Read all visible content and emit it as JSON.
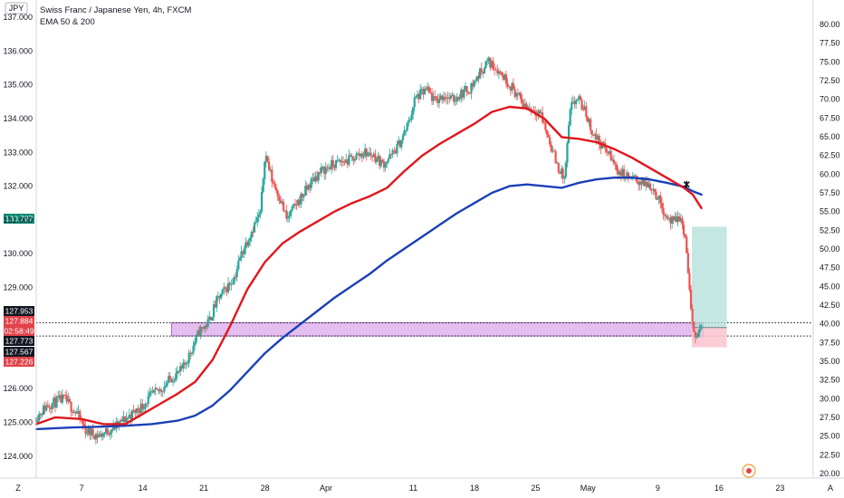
{
  "header": {
    "symbol_badge": "JPY",
    "title": "Swiss Franc / Japanese Yen, 4h, FXCM",
    "indicator": "EMA 50 & 200"
  },
  "colors": {
    "up": "#26a69a",
    "down": "#ef5350",
    "ema50": "#e0161b",
    "ema200": "#1b40b7",
    "zone_fill": "#d9a8e8",
    "target_fill": "#b2dfdb",
    "stop_fill": "#f8c3cf",
    "price_badge_green": "#0b8a72",
    "price_badge_red": "#e2434a",
    "price_badge_dark": "#131722"
  },
  "axis": {
    "corner_left": "Z",
    "corner_right": "A"
  },
  "price_badges": [
    {
      "label": "130.797",
      "style": "green"
    },
    {
      "label": "127.953",
      "style": "dark"
    },
    {
      "label": "127.884",
      "style": "red"
    },
    {
      "label": "02:58:49",
      "style": "red"
    },
    {
      "label": "127.773",
      "style": "dark"
    },
    {
      "label": "127.567",
      "style": "dark"
    },
    {
      "label": "127.226",
      "style": "red"
    }
  ],
  "chart_data": {
    "type": "candlestick",
    "title": "Swiss Franc / Japanese Yen, 4h, FXCM",
    "left_axis": {
      "ylim": [
        123.35,
        137.3
      ],
      "ticks": [
        "124.000",
        "125.000",
        "126.000",
        "129.000",
        "130.000",
        "131.000",
        "132.000",
        "133.000",
        "134.000",
        "135.000",
        "136.000",
        "137.000"
      ]
    },
    "right_axis": {
      "ylim": [
        19.4,
        82.3
      ],
      "ticks": [
        "20.00",
        "22.50",
        "25.00",
        "27.50",
        "30.00",
        "32.50",
        "35.00",
        "37.50",
        "40.00",
        "42.50",
        "45.00",
        "47.50",
        "50.00",
        "52.50",
        "55.00",
        "57.50",
        "60.00",
        "62.50",
        "65.00",
        "67.50",
        "70.00",
        "72.50",
        "75.00",
        "77.50",
        "80.00"
      ]
    },
    "x_ticks": [
      {
        "label": "7",
        "day": 7
      },
      {
        "label": "14",
        "day": 14
      },
      {
        "label": "21",
        "day": 21
      },
      {
        "label": "28",
        "day": 28
      },
      {
        "label": "Apr",
        "day": 35
      },
      {
        "label": "11",
        "day": 45
      },
      {
        "label": "18",
        "day": 52
      },
      {
        "label": "25",
        "day": 59
      },
      {
        "label": "May",
        "day": 65
      },
      {
        "label": "9",
        "day": 73
      },
      {
        "label": "16",
        "day": 80
      },
      {
        "label": "23",
        "day": 87
      }
    ],
    "x_range_days": [
      1.8,
      90.8
    ],
    "close_path": [
      [
        1.8,
        125.15
      ],
      [
        3,
        125.5
      ],
      [
        5,
        125.7
      ],
      [
        6.5,
        125.25
      ],
      [
        7.5,
        124.75
      ],
      [
        9,
        124.6
      ],
      [
        11,
        124.9
      ],
      [
        12.5,
        125.2
      ],
      [
        14,
        125.5
      ],
      [
        15,
        125.8
      ],
      [
        16,
        125.95
      ],
      [
        17.2,
        126.3
      ],
      [
        18.5,
        126.55
      ],
      [
        19.5,
        127.1
      ],
      [
        20.5,
        127.7
      ],
      [
        21.5,
        127.95
      ],
      [
        22.5,
        128.6
      ],
      [
        23.5,
        128.95
      ],
      [
        24.5,
        129.3
      ],
      [
        25.3,
        130.0
      ],
      [
        26.5,
        130.7
      ],
      [
        27.5,
        131.2
      ],
      [
        28,
        133.0
      ],
      [
        28.8,
        132.2
      ],
      [
        29.8,
        131.6
      ],
      [
        30.5,
        131.0
      ],
      [
        31.3,
        131.35
      ],
      [
        32.5,
        131.8
      ],
      [
        33.5,
        132.2
      ],
      [
        34.5,
        132.45
      ],
      [
        35.5,
        132.6
      ],
      [
        36.5,
        132.7
      ],
      [
        37.5,
        132.75
      ],
      [
        38.5,
        132.9
      ],
      [
        39.5,
        133.0
      ],
      [
        40.5,
        132.9
      ],
      [
        41.5,
        132.65
      ],
      [
        42.5,
        132.9
      ],
      [
        43.5,
        133.3
      ],
      [
        44.5,
        133.9
      ],
      [
        45.2,
        134.6
      ],
      [
        46.5,
        134.85
      ],
      [
        47.5,
        134.5
      ],
      [
        48.5,
        134.7
      ],
      [
        49.5,
        134.55
      ],
      [
        50.5,
        134.75
      ],
      [
        51.5,
        134.9
      ],
      [
        52.5,
        135.3
      ],
      [
        53.5,
        135.7
      ],
      [
        54.5,
        135.5
      ],
      [
        55.5,
        135.2
      ],
      [
        56.5,
        134.85
      ],
      [
        57.5,
        134.45
      ],
      [
        58.5,
        134.3
      ],
      [
        59.5,
        134.2
      ],
      [
        60.5,
        133.4
      ],
      [
        61.5,
        132.6
      ],
      [
        62.3,
        132.2
      ],
      [
        63,
        134.3
      ],
      [
        63.8,
        134.6
      ],
      [
        64.7,
        134.2
      ],
      [
        65.5,
        133.6
      ],
      [
        66.3,
        133.3
      ],
      [
        67.3,
        133.0
      ],
      [
        68.3,
        132.5
      ],
      [
        69.3,
        132.3
      ],
      [
        70.3,
        132.2
      ],
      [
        71.3,
        132.1
      ],
      [
        72.3,
        132.0
      ],
      [
        73.3,
        131.5
      ],
      [
        74,
        131.1
      ],
      [
        74.8,
        130.9
      ],
      [
        75.5,
        131.1
      ],
      [
        76.2,
        130.4
      ],
      [
        76.9,
        127.9
      ],
      [
        77.5,
        127.55
      ],
      [
        78,
        127.85
      ]
    ],
    "ema50": [
      [
        1.8,
        124.95
      ],
      [
        4,
        125.15
      ],
      [
        7,
        125.1
      ],
      [
        9.5,
        124.95
      ],
      [
        12,
        124.95
      ],
      [
        14,
        125.25
      ],
      [
        16,
        125.55
      ],
      [
        18,
        125.85
      ],
      [
        20,
        126.2
      ],
      [
        22,
        126.85
      ],
      [
        24,
        127.85
      ],
      [
        26,
        128.95
      ],
      [
        28,
        129.75
      ],
      [
        30,
        130.3
      ],
      [
        32,
        130.65
      ],
      [
        34,
        130.95
      ],
      [
        36,
        131.25
      ],
      [
        38,
        131.5
      ],
      [
        40,
        131.7
      ],
      [
        42,
        131.95
      ],
      [
        44,
        132.45
      ],
      [
        46,
        132.9
      ],
      [
        48,
        133.25
      ],
      [
        50,
        133.55
      ],
      [
        52,
        133.85
      ],
      [
        54,
        134.2
      ],
      [
        56,
        134.35
      ],
      [
        58,
        134.3
      ],
      [
        60,
        134.0
      ],
      [
        62,
        133.45
      ],
      [
        64,
        133.4
      ],
      [
        66,
        133.3
      ],
      [
        68,
        133.1
      ],
      [
        70,
        132.85
      ],
      [
        72,
        132.55
      ],
      [
        74,
        132.25
      ],
      [
        76,
        131.95
      ],
      [
        77,
        131.75
      ],
      [
        78,
        131.35
      ]
    ],
    "ema200": [
      [
        1.8,
        124.8
      ],
      [
        6,
        124.85
      ],
      [
        9,
        124.87
      ],
      [
        12,
        124.9
      ],
      [
        15,
        124.95
      ],
      [
        18,
        125.05
      ],
      [
        20,
        125.2
      ],
      [
        22,
        125.5
      ],
      [
        24,
        125.95
      ],
      [
        26,
        126.5
      ],
      [
        28,
        127.05
      ],
      [
        30,
        127.5
      ],
      [
        32,
        127.9
      ],
      [
        34,
        128.3
      ],
      [
        36,
        128.7
      ],
      [
        38,
        129.05
      ],
      [
        40,
        129.4
      ],
      [
        42,
        129.8
      ],
      [
        44,
        130.15
      ],
      [
        46,
        130.5
      ],
      [
        48,
        130.85
      ],
      [
        50,
        131.2
      ],
      [
        52,
        131.5
      ],
      [
        54,
        131.8
      ],
      [
        56,
        132.0
      ],
      [
        58,
        132.05
      ],
      [
        60,
        132.0
      ],
      [
        62,
        131.95
      ],
      [
        64,
        132.1
      ],
      [
        66,
        132.2
      ],
      [
        68,
        132.25
      ],
      [
        70,
        132.25
      ],
      [
        72,
        132.2
      ],
      [
        74,
        132.1
      ],
      [
        76,
        131.98
      ],
      [
        77,
        131.85
      ],
      [
        78,
        131.75
      ]
    ],
    "cross_marker": {
      "day": 76.3,
      "price": 132.05
    },
    "support_zone": {
      "price_low": 127.56,
      "price_high": 127.95,
      "start_day": 17.3,
      "end_day": 78.2
    },
    "position": {
      "entry": 127.81,
      "target": 130.797,
      "stop": 127.226,
      "start_day": 76.9,
      "end_day": 80.9
    },
    "current_price": 127.884
  }
}
